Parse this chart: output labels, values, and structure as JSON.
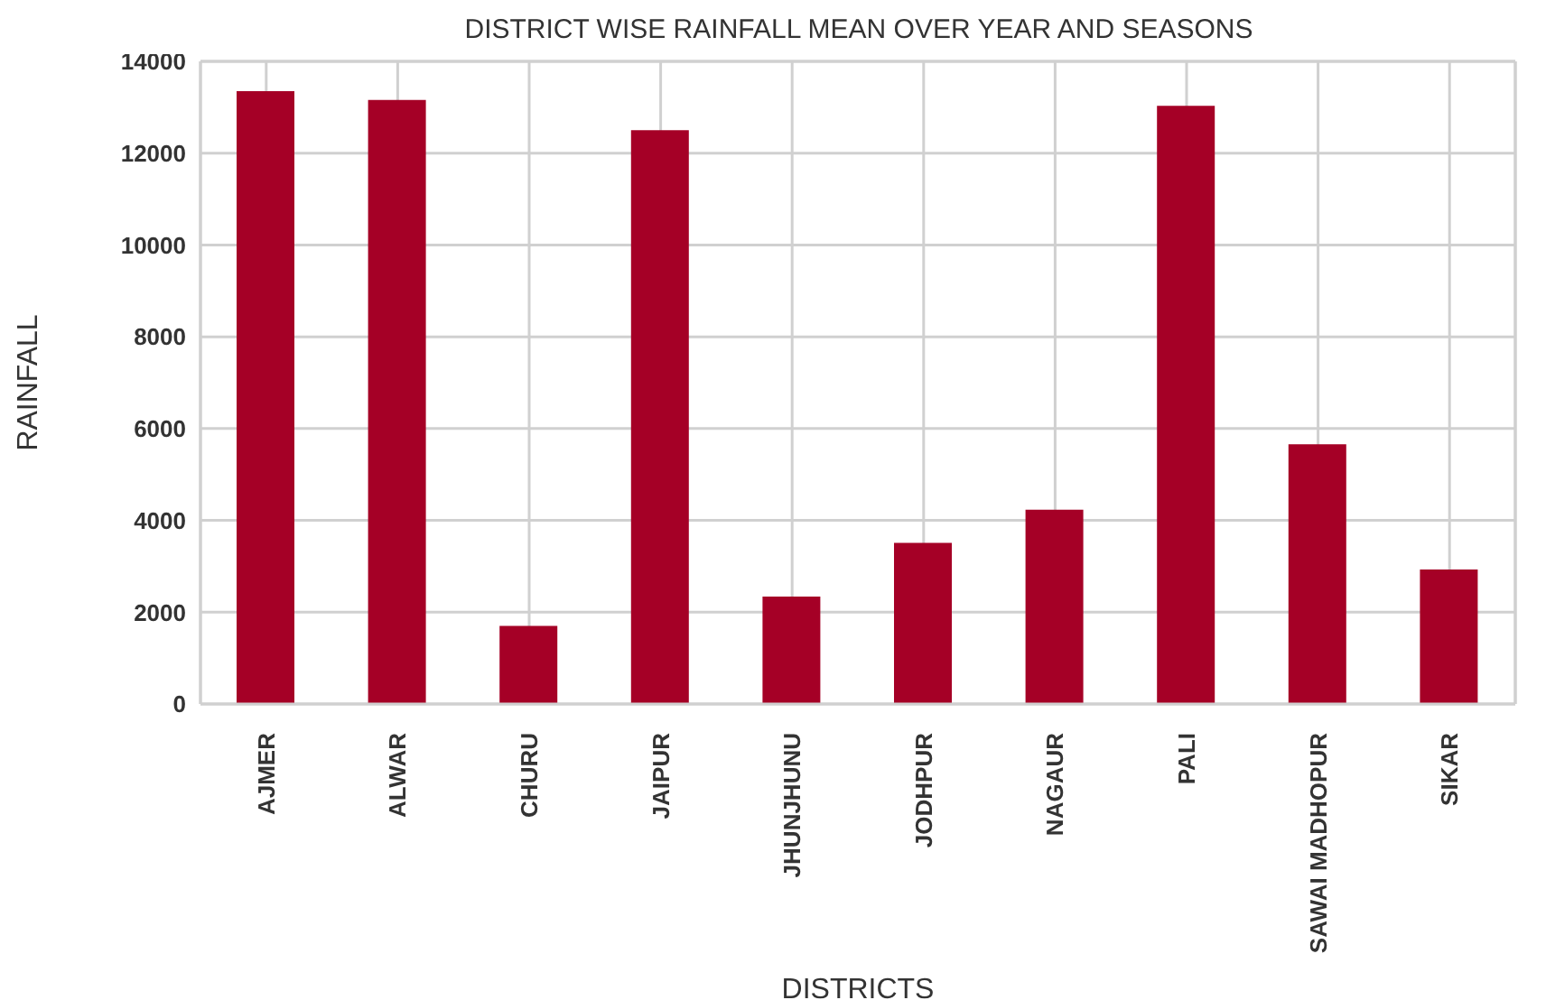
{
  "chart_data": {
    "type": "bar",
    "title": "DISTRICT WISE RAINFALL MEAN OVER YEAR AND SEASONS",
    "xlabel": "DISTRICTS",
    "ylabel": "RAINFALL",
    "categories": [
      "AJMER",
      "ALWAR",
      "CHURU",
      "JAIPUR",
      "JHUNJHUNU",
      "JODHPUR",
      "NAGAUR",
      "PALI",
      "SAWAI MADHOPUR",
      "SIKAR"
    ],
    "values": [
      13350,
      13160,
      1700,
      12500,
      2340,
      3510,
      4230,
      13030,
      5660,
      2930
    ],
    "color": "#a50026",
    "ylim": [
      0,
      14000
    ],
    "yticks": [
      0,
      2000,
      4000,
      6000,
      8000,
      10000,
      12000,
      14000
    ],
    "grid": true,
    "legend": false
  }
}
